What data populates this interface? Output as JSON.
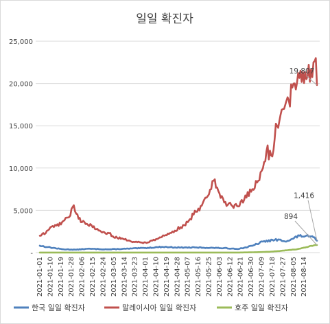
{
  "chart_data": {
    "type": "line",
    "title": "일일 확진자",
    "xlabel": "",
    "ylabel": "",
    "ylim": [
      0,
      25000
    ],
    "yticks": [
      0,
      5000,
      10000,
      15000,
      20000,
      25000
    ],
    "ytick_labels": [
      "-",
      "5,000",
      "10,000",
      "15,000",
      "20,000",
      "25,000"
    ],
    "x_tick_labels": [
      "2021-01-01",
      "2021-01-10",
      "2021-01-19",
      "2021-01-28",
      "2021-02-06",
      "2021-02-15",
      "2021-02-24",
      "2021-03-05",
      "2021-03-14",
      "2021-03-23",
      "2021-04-01",
      "2021-04-10",
      "2021-04-19",
      "2021-04-28",
      "2021-05-07",
      "2021-05-16",
      "2021-05-25",
      "2021-06-03",
      "2021-06-12",
      "2021-06-21",
      "2021-06-30",
      "2021-07-09",
      "2021-07-18",
      "2021-07-27",
      "2021-08-05",
      "2021-08-14"
    ],
    "x_start": "2021-01-01",
    "x_end": "2021-08-25",
    "grid": "horizontal",
    "legend_position": "bottom",
    "series": [
      {
        "name": "한국 일일 확진자",
        "color": "#4f81bd",
        "anchors": [
          [
            "2021-01-01",
            820
          ],
          [
            "2021-01-08",
            650
          ],
          [
            "2021-01-20",
            400
          ],
          [
            "2021-02-01",
            350
          ],
          [
            "2021-02-10",
            450
          ],
          [
            "2021-02-20",
            420
          ],
          [
            "2021-03-01",
            380
          ],
          [
            "2021-03-15",
            450
          ],
          [
            "2021-04-01",
            550
          ],
          [
            "2021-04-15",
            680
          ],
          [
            "2021-05-01",
            600
          ],
          [
            "2021-05-15",
            600
          ],
          [
            "2021-06-01",
            550
          ],
          [
            "2021-06-20",
            450
          ],
          [
            "2021-07-01",
            800
          ],
          [
            "2021-07-10",
            1300
          ],
          [
            "2021-07-20",
            1500
          ],
          [
            "2021-08-01",
            1400
          ],
          [
            "2021-08-10",
            2000
          ],
          [
            "2021-08-18",
            1900
          ],
          [
            "2021-08-22",
            1800
          ],
          [
            "2021-08-25",
            1416
          ]
        ]
      },
      {
        "name": "말레이시아 일일 확진자",
        "color": "#c0504d",
        "anchors": [
          [
            "2021-01-01",
            2000
          ],
          [
            "2021-01-06",
            2300
          ],
          [
            "2021-01-10",
            3000
          ],
          [
            "2021-01-15",
            3200
          ],
          [
            "2021-01-20",
            3600
          ],
          [
            "2021-01-26",
            4200
          ],
          [
            "2021-01-30",
            5600
          ],
          [
            "2021-02-03",
            4000
          ],
          [
            "2021-02-08",
            3600
          ],
          [
            "2021-02-15",
            3000
          ],
          [
            "2021-02-22",
            2500
          ],
          [
            "2021-03-01",
            2300
          ],
          [
            "2021-03-05",
            1800
          ],
          [
            "2021-03-12",
            1700
          ],
          [
            "2021-03-20",
            1300
          ],
          [
            "2021-03-28",
            1200
          ],
          [
            "2021-04-03",
            1200
          ],
          [
            "2021-04-10",
            1600
          ],
          [
            "2021-04-17",
            2000
          ],
          [
            "2021-04-24",
            2500
          ],
          [
            "2021-05-01",
            3000
          ],
          [
            "2021-05-07",
            3600
          ],
          [
            "2021-05-12",
            4500
          ],
          [
            "2021-05-18",
            5500
          ],
          [
            "2021-05-22",
            6500
          ],
          [
            "2021-05-29",
            8500
          ],
          [
            "2021-06-03",
            7000
          ],
          [
            "2021-06-08",
            6000
          ],
          [
            "2021-06-14",
            5500
          ],
          [
            "2021-06-20",
            5500
          ],
          [
            "2021-06-26",
            6500
          ],
          [
            "2021-07-01",
            7500
          ],
          [
            "2021-07-06",
            8500
          ],
          [
            "2021-07-10",
            10000
          ],
          [
            "2021-07-13",
            12000
          ],
          [
            "2021-07-17",
            11500
          ],
          [
            "2021-07-22",
            15000
          ],
          [
            "2021-07-28",
            17000
          ],
          [
            "2021-08-01",
            18000
          ],
          [
            "2021-08-06",
            20000
          ],
          [
            "2021-08-11",
            21500
          ],
          [
            "2021-08-16",
            20500
          ],
          [
            "2021-08-22",
            22500
          ],
          [
            "2021-08-24",
            23000
          ],
          [
            "2021-08-25",
            19807
          ]
        ]
      },
      {
        "name": "호주 일일 확진자",
        "color": "#9bbb59",
        "anchors": [
          [
            "2021-01-01",
            10
          ],
          [
            "2021-06-20",
            10
          ],
          [
            "2021-07-05",
            50
          ],
          [
            "2021-07-15",
            100
          ],
          [
            "2021-07-25",
            200
          ],
          [
            "2021-08-01",
            300
          ],
          [
            "2021-08-08",
            400
          ],
          [
            "2021-08-15",
            600
          ],
          [
            "2021-08-20",
            800
          ],
          [
            "2021-08-25",
            894
          ]
        ]
      }
    ],
    "annotations": [
      {
        "text": "19,807",
        "series": 1,
        "date": "2021-08-25",
        "value": 19807
      },
      {
        "text": "1,416",
        "series": 0,
        "date": "2021-08-25",
        "value": 1416
      },
      {
        "text": "894",
        "series": 2,
        "date": "2021-08-25",
        "value": 894
      }
    ]
  }
}
